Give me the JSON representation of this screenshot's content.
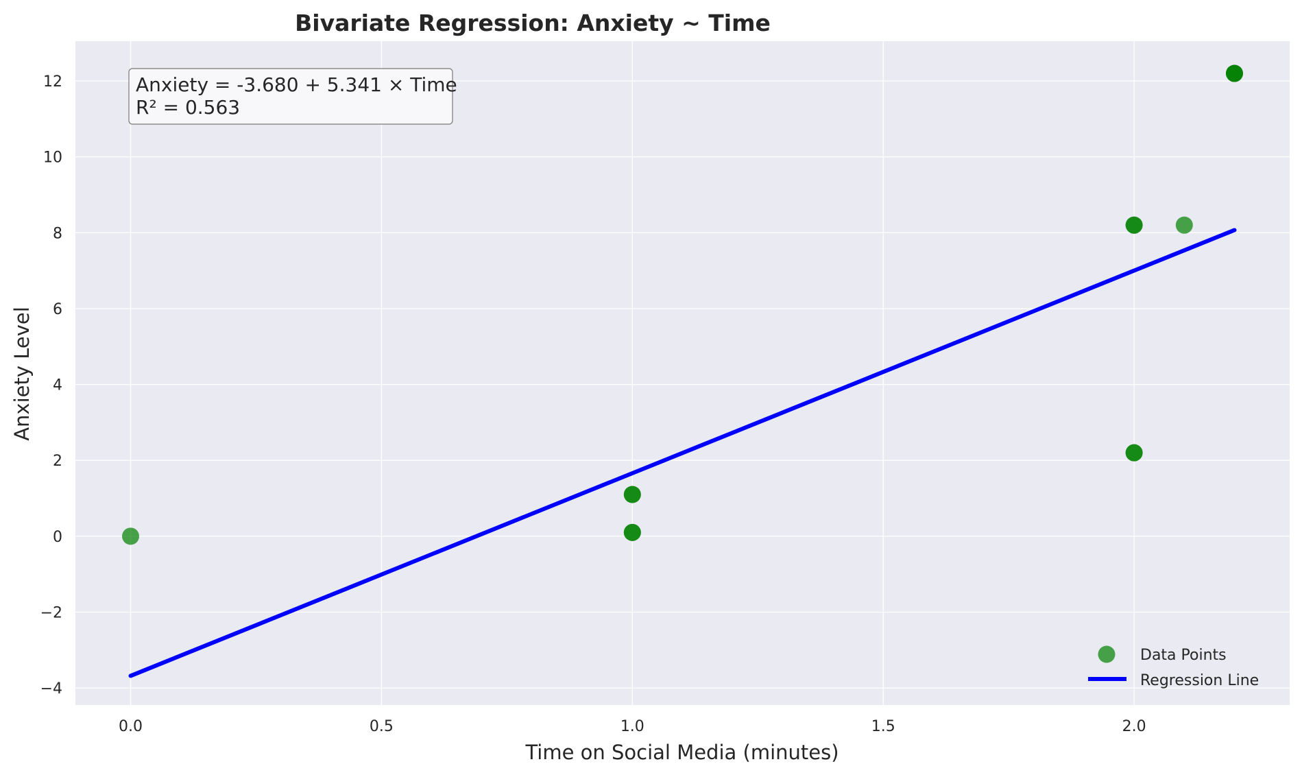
{
  "chart_data": {
    "type": "scatter",
    "title": "Bivariate Regression: Anxiety ~ Time",
    "xlabel": "Time on Social Media (minutes)",
    "ylabel": "Anxiety Level",
    "xlim": [
      -0.11,
      2.31
    ],
    "ylim": [
      -4.45,
      13.05
    ],
    "x_ticks": [
      0.0,
      0.5,
      1.0,
      1.5,
      2.0
    ],
    "x_tick_labels": [
      "0.0",
      "0.5",
      "1.0",
      "1.5",
      "2.0"
    ],
    "y_ticks": [
      -4,
      -2,
      0,
      2,
      4,
      6,
      8,
      10,
      12
    ],
    "y_tick_labels": [
      "−4",
      "−2",
      "0",
      "2",
      "4",
      "6",
      "8",
      "10",
      "12"
    ],
    "grid": true,
    "legend_position": "lower-right",
    "series": [
      {
        "name": "Data Points",
        "kind": "scatter",
        "color": "#008000",
        "points": [
          {
            "x": 0.0,
            "y": 0.0
          },
          {
            "x": 1.0,
            "y": 0.1
          },
          {
            "x": 1.0,
            "y": 0.1
          },
          {
            "x": 1.0,
            "y": 1.1
          },
          {
            "x": 1.0,
            "y": 1.1
          },
          {
            "x": 2.0,
            "y": 2.2
          },
          {
            "x": 2.0,
            "y": 2.2
          },
          {
            "x": 2.0,
            "y": 8.2
          },
          {
            "x": 2.0,
            "y": 8.2
          },
          {
            "x": 2.1,
            "y": 8.2
          },
          {
            "x": 2.2,
            "y": 12.2
          },
          {
            "x": 2.2,
            "y": 12.2
          },
          {
            "x": 2.2,
            "y": 12.2
          }
        ]
      },
      {
        "name": "Regression Line",
        "kind": "line",
        "color": "#0000ff",
        "points": [
          {
            "x": 0.0,
            "y": -3.68
          },
          {
            "x": 2.2,
            "y": 8.07
          }
        ]
      }
    ],
    "annotation": {
      "lines": [
        "Anxiety = -3.680 + 5.341 × Time",
        "R² = 0.563"
      ]
    },
    "colors": {
      "plot_background": "#eaeaf2",
      "grid": "#ffffff",
      "points": "#008000",
      "line": "#0000ff"
    }
  }
}
